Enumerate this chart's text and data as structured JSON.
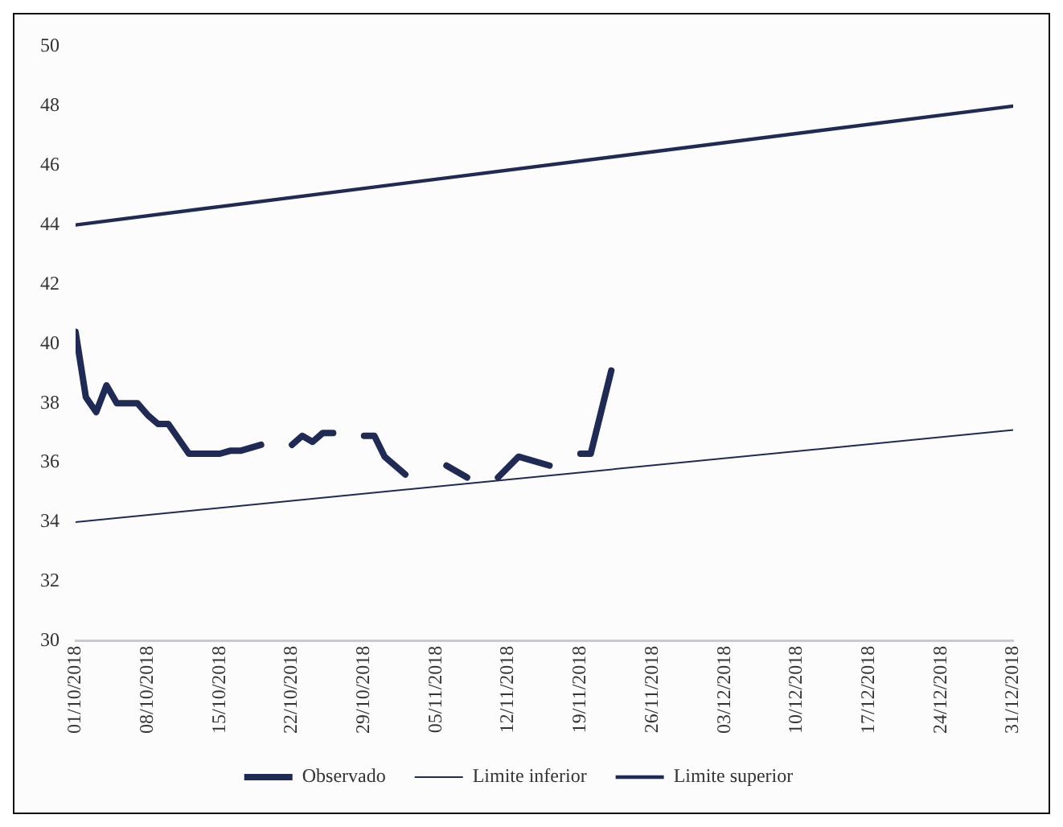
{
  "chart_data": {
    "type": "line",
    "series": [
      {
        "name": "Observado",
        "color": "#1f2a55",
        "x": [
          "2018-10-01",
          "2018-10-02",
          "2018-10-03",
          "2018-10-04",
          "2018-10-05",
          "2018-10-07",
          "2018-10-08",
          "2018-10-09",
          "2018-10-10",
          "2018-10-12",
          "2018-10-15",
          "2018-10-16",
          "2018-10-17",
          "2018-10-19",
          "2018-10-20",
          "2018-10-22",
          "2018-10-23",
          "2018-10-24",
          "2018-10-25",
          "2018-10-26",
          "2018-10-27",
          "2018-10-29",
          "2018-10-30",
          "2018-10-31",
          "2018-11-02",
          "2018-11-04",
          "2018-11-06",
          "2018-11-08",
          "2018-11-09",
          "2018-11-11",
          "2018-11-13",
          "2018-11-16",
          "2018-11-17",
          "2018-11-19",
          "2018-11-20",
          "2018-11-22"
        ],
        "values": [
          40.4,
          38.2,
          37.7,
          38.6,
          38.0,
          38.0,
          37.6,
          37.3,
          37.3,
          36.3,
          36.3,
          36.4,
          36.4,
          36.6,
          null,
          36.6,
          36.9,
          36.7,
          37.0,
          37.0,
          null,
          36.9,
          36.9,
          36.2,
          35.6,
          null,
          35.9,
          35.5,
          null,
          35.5,
          36.2,
          35.9,
          null,
          36.3,
          36.3,
          39.1
        ]
      },
      {
        "name": "Limite inferior",
        "color": "#1f2a55",
        "x": [
          "2018-10-01",
          "2018-12-31"
        ],
        "values": [
          34,
          37.1
        ]
      },
      {
        "name": "Limite superior",
        "color": "#1f2a55",
        "x": [
          "2018-10-01",
          "2018-12-31"
        ],
        "values": [
          44,
          48
        ]
      }
    ],
    "xlim": [
      "2018-10-01",
      "2018-12-31"
    ],
    "xticks": [
      {
        "value": "2018-10-01",
        "label": "01/10/2018"
      },
      {
        "value": "2018-10-08",
        "label": "08/10/2018"
      },
      {
        "value": "2018-10-15",
        "label": "15/10/2018"
      },
      {
        "value": "2018-10-22",
        "label": "22/10/2018"
      },
      {
        "value": "2018-10-29",
        "label": "29/10/2018"
      },
      {
        "value": "2018-11-05",
        "label": "05/11/2018"
      },
      {
        "value": "2018-11-12",
        "label": "12/11/2018"
      },
      {
        "value": "2018-11-19",
        "label": "19/11/2018"
      },
      {
        "value": "2018-11-26",
        "label": "26/11/2018"
      },
      {
        "value": "2018-12-03",
        "label": "03/12/2018"
      },
      {
        "value": "2018-12-10",
        "label": "10/12/2018"
      },
      {
        "value": "2018-12-17",
        "label": "17/12/2018"
      },
      {
        "value": "2018-12-24",
        "label": "24/12/2018"
      },
      {
        "value": "2018-12-31",
        "label": "31/12/2018"
      }
    ],
    "ylim": [
      30,
      50
    ],
    "yticks": [
      30,
      32,
      34,
      36,
      38,
      40,
      42,
      44,
      46,
      48,
      50
    ],
    "grid": false,
    "legend": "bottom",
    "marker": "none",
    "line_style": "solid"
  }
}
